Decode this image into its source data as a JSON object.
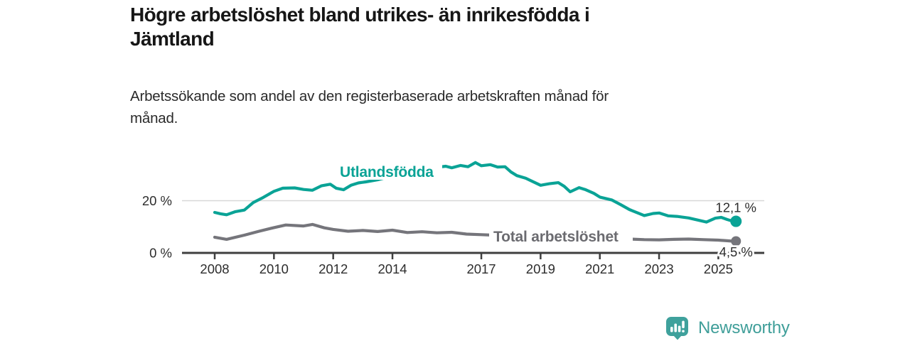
{
  "header": {
    "title_lines": [
      "Högre arbetslöshet bland utrikes- än inrikesfödda i",
      "Jämtland"
    ],
    "subtitle_lines": [
      "Arbetssökande som andel av den registerbaserade arbetskraften månad för",
      "månad."
    ]
  },
  "footer": {
    "brand": "Newsworthy",
    "logo_icon": "bar-chart-speech-bubble",
    "brand_color": "#3f9e99",
    "logo_color": "#3fa19c"
  },
  "chart_data": {
    "type": "line",
    "title": "Högre arbetslöshet bland utrikes- än inrikesfödda i Jämtland",
    "subtitle": "Arbetssökande som andel av den registerbaserade arbetskraften månad för månad.",
    "xlabel": "",
    "ylabel": "",
    "grid": "horizontal-20-only",
    "legend_position": "inline-labels-on-lines",
    "x_range_years": [
      2007,
      2026.5
    ],
    "ylim": [
      0,
      38
    ],
    "x_ticks": [
      2008,
      2010,
      2012,
      2014,
      2017,
      2019,
      2021,
      2023,
      2025
    ],
    "y_ticks": [
      {
        "value": 0,
        "label": "0 %"
      },
      {
        "value": 20,
        "label": "20 %"
      }
    ],
    "colors": {
      "axis": "#3f3f3f",
      "grid": "#d8d8d8",
      "tick_text": "#2d2d2d",
      "annotation_text": "#2d2d2d"
    },
    "series": [
      {
        "name": "Utlandsfödda",
        "color": "#0aa396",
        "end_label": "12,1 %",
        "end_value": 12.1,
        "points": [
          [
            2008.0,
            15.5
          ],
          [
            2008.2,
            15.0
          ],
          [
            2008.4,
            14.6
          ],
          [
            2008.7,
            15.8
          ],
          [
            2009.0,
            16.4
          ],
          [
            2009.3,
            19.3
          ],
          [
            2009.6,
            21.0
          ],
          [
            2010.0,
            23.6
          ],
          [
            2010.3,
            24.8
          ],
          [
            2010.7,
            24.9
          ],
          [
            2011.0,
            24.3
          ],
          [
            2011.3,
            24.0
          ],
          [
            2011.6,
            25.7
          ],
          [
            2011.9,
            26.3
          ],
          [
            2012.1,
            24.8
          ],
          [
            2012.35,
            24.2
          ],
          [
            2012.6,
            25.9
          ],
          [
            2012.85,
            26.8
          ],
          [
            2013.1,
            27.2
          ],
          [
            2013.5,
            28.0
          ],
          [
            2014.0,
            29.5
          ],
          [
            2014.5,
            30.5
          ],
          [
            2015.0,
            31.5
          ],
          [
            2015.5,
            32.8
          ],
          [
            2015.8,
            33.2
          ],
          [
            2016.0,
            32.6
          ],
          [
            2016.3,
            33.5
          ],
          [
            2016.55,
            33.0
          ],
          [
            2016.8,
            34.6
          ],
          [
            2017.0,
            33.4
          ],
          [
            2017.3,
            33.8
          ],
          [
            2017.55,
            32.9
          ],
          [
            2017.8,
            33.0
          ],
          [
            2018.0,
            31.0
          ],
          [
            2018.2,
            29.6
          ],
          [
            2018.5,
            28.6
          ],
          [
            2019.0,
            25.9
          ],
          [
            2019.3,
            26.5
          ],
          [
            2019.6,
            26.9
          ],
          [
            2019.8,
            25.5
          ],
          [
            2020.0,
            23.4
          ],
          [
            2020.3,
            25.0
          ],
          [
            2020.5,
            24.3
          ],
          [
            2020.8,
            22.8
          ],
          [
            2021.0,
            21.4
          ],
          [
            2021.4,
            20.3
          ],
          [
            2021.7,
            18.5
          ],
          [
            2022.0,
            16.6
          ],
          [
            2022.3,
            15.2
          ],
          [
            2022.5,
            14.3
          ],
          [
            2022.8,
            15.1
          ],
          [
            2023.0,
            15.3
          ],
          [
            2023.3,
            14.2
          ],
          [
            2023.6,
            14.0
          ],
          [
            2024.0,
            13.4
          ],
          [
            2024.3,
            12.6
          ],
          [
            2024.6,
            11.8
          ],
          [
            2024.9,
            13.3
          ],
          [
            2025.1,
            13.6
          ],
          [
            2025.3,
            12.8
          ],
          [
            2025.5,
            12.1
          ]
        ]
      },
      {
        "name": "Total arbetslöshet",
        "color": "#75757b",
        "label_color": "#6b6b70",
        "end_label": "4,5 %",
        "end_value": 4.5,
        "points": [
          [
            2008.0,
            6.0
          ],
          [
            2008.4,
            5.2
          ],
          [
            2009.0,
            6.8
          ],
          [
            2009.5,
            8.3
          ],
          [
            2010.0,
            9.7
          ],
          [
            2010.4,
            10.7
          ],
          [
            2011.0,
            10.3
          ],
          [
            2011.3,
            10.9
          ],
          [
            2011.7,
            9.6
          ],
          [
            2012.0,
            9.0
          ],
          [
            2012.5,
            8.3
          ],
          [
            2013.0,
            8.6
          ],
          [
            2013.5,
            8.2
          ],
          [
            2014.0,
            8.7
          ],
          [
            2014.5,
            7.8
          ],
          [
            2015.0,
            8.1
          ],
          [
            2015.5,
            7.7
          ],
          [
            2016.0,
            7.9
          ],
          [
            2016.5,
            7.2
          ],
          [
            2017.0,
            7.0
          ],
          [
            2017.4,
            6.8
          ],
          [
            2018.0,
            6.6
          ],
          [
            2018.5,
            6.4
          ],
          [
            2019.0,
            6.2
          ],
          [
            2019.5,
            6.0
          ],
          [
            2020.0,
            6.8
          ],
          [
            2020.5,
            6.6
          ],
          [
            2021.0,
            6.2
          ],
          [
            2021.5,
            5.8
          ],
          [
            2022.0,
            5.3
          ],
          [
            2022.5,
            5.1
          ],
          [
            2023.0,
            5.0
          ],
          [
            2023.5,
            5.2
          ],
          [
            2024.0,
            5.3
          ],
          [
            2024.5,
            5.1
          ],
          [
            2025.0,
            4.9
          ],
          [
            2025.5,
            4.5
          ]
        ]
      }
    ]
  }
}
